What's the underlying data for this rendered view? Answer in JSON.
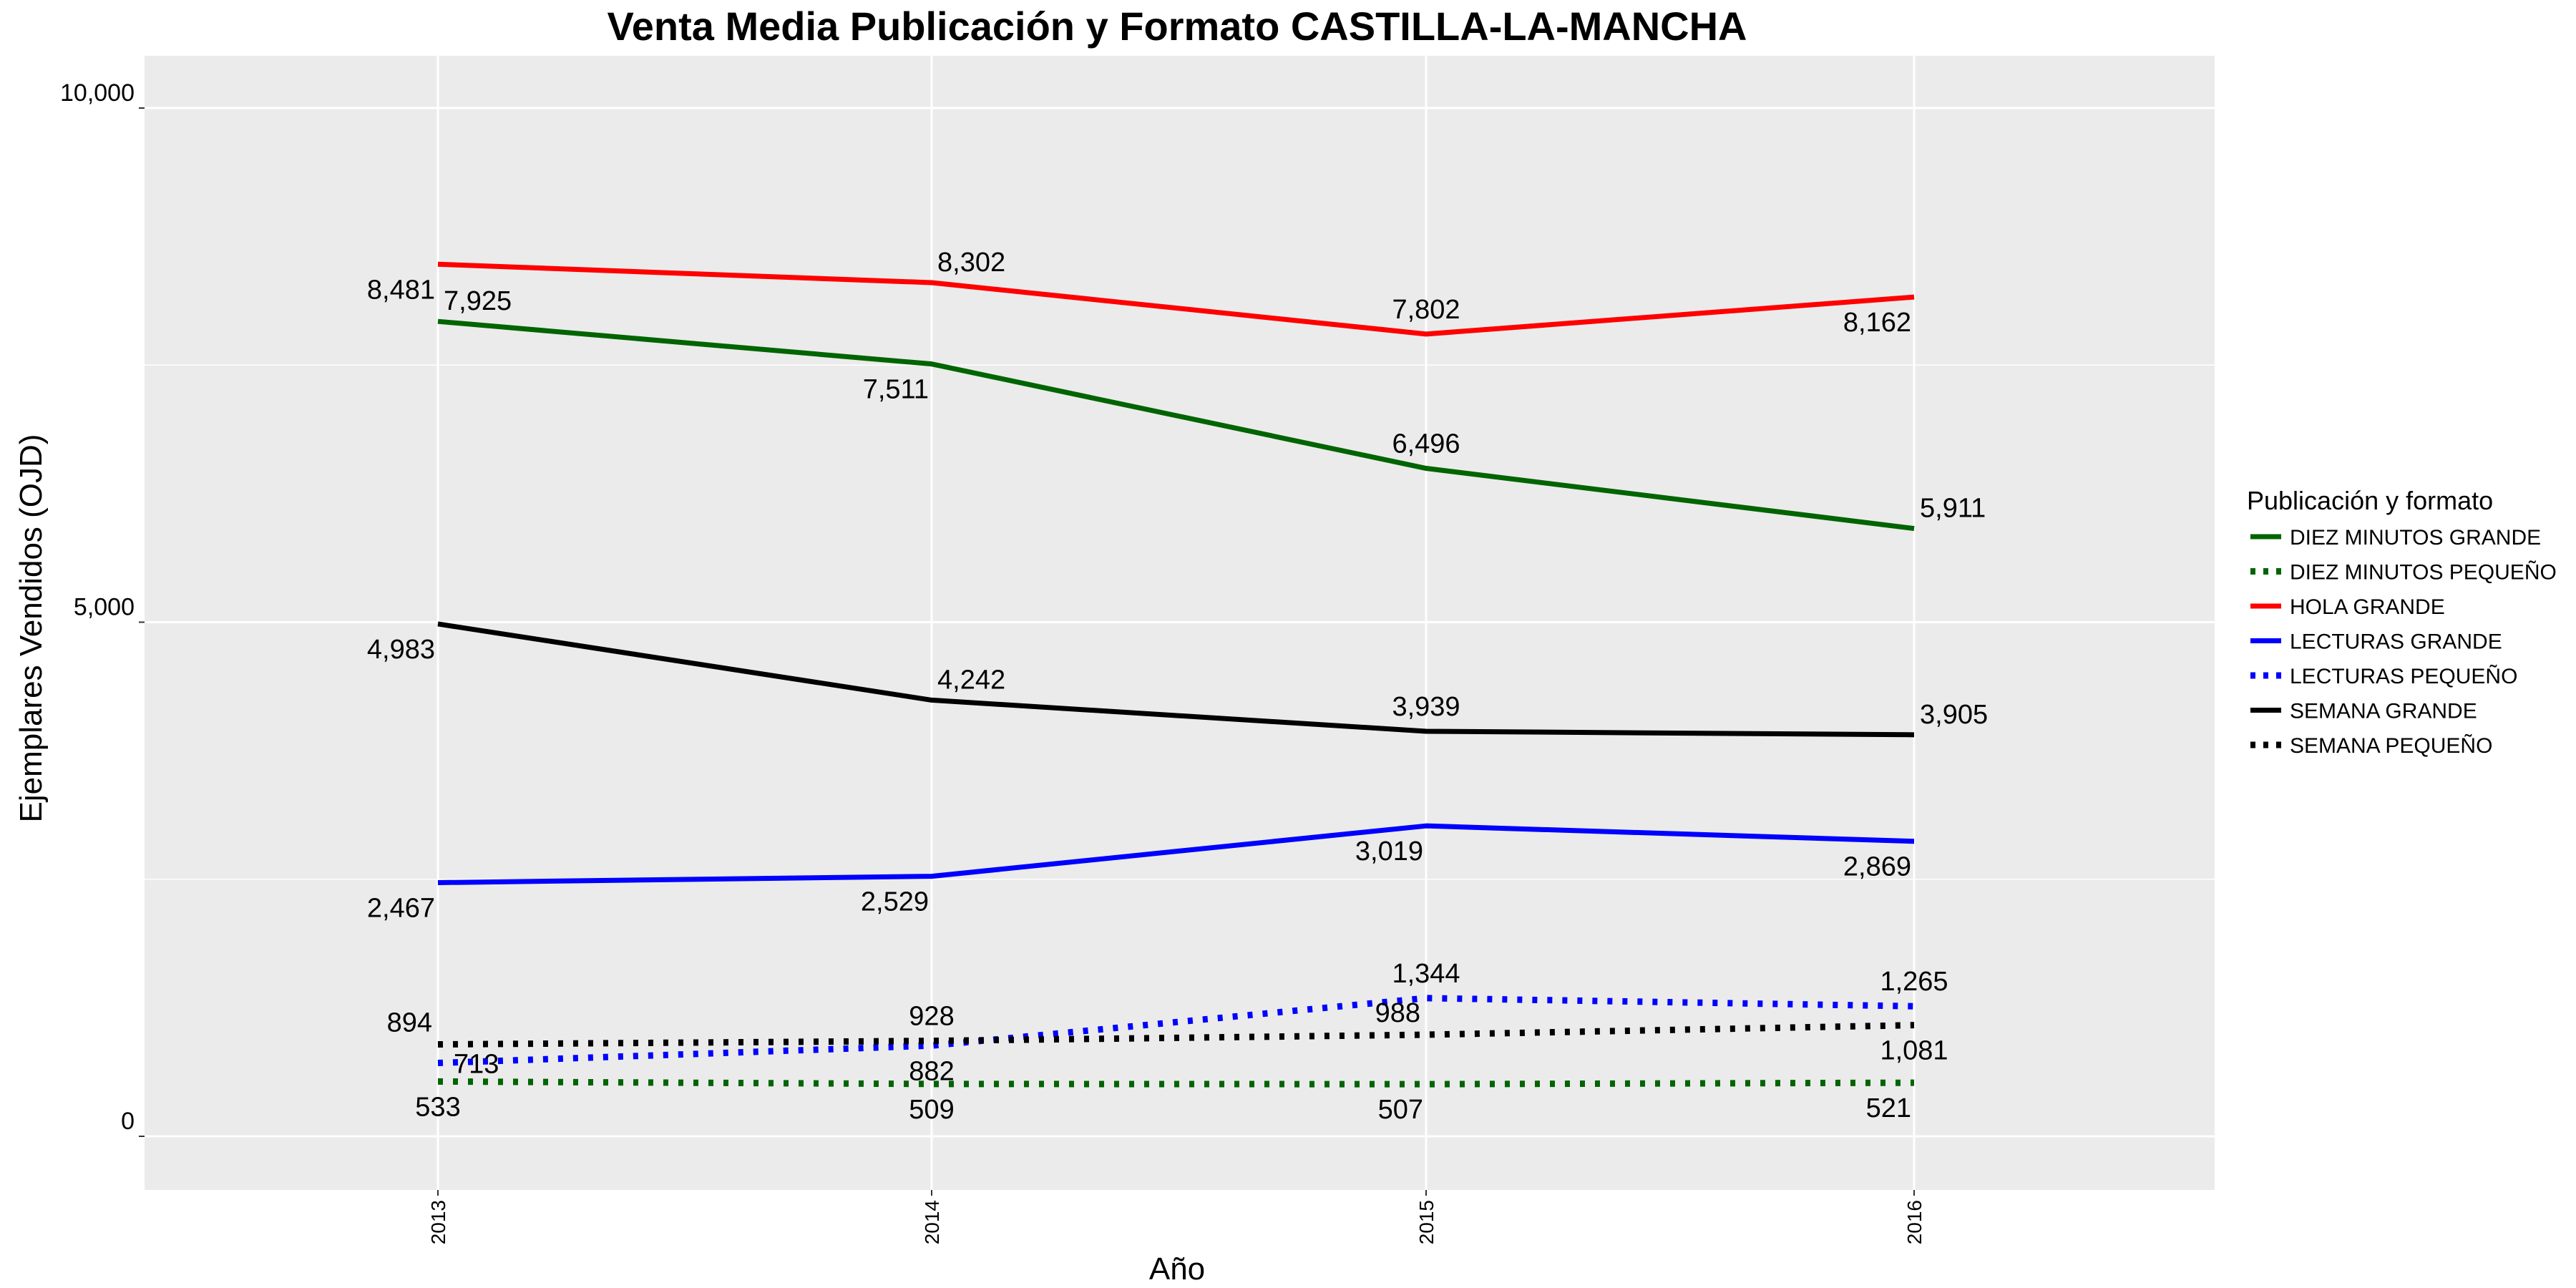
{
  "chart_data": {
    "type": "line",
    "title": "Venta Media Publicación y Formato  CASTILLA-LA-MANCHA",
    "xlabel": "Año",
    "ylabel": "Ejemplares Vendidos (OJD)",
    "x": [
      "2013",
      "2014",
      "2015",
      "2016"
    ],
    "ylim": [
      -500,
      10200
    ],
    "yticks": [
      0,
      5000,
      10000
    ],
    "ytick_labels": [
      "0",
      "5,000",
      "10,000"
    ],
    "grid": true,
    "legend_position": "right",
    "legend_title": "Publicación y formato",
    "series": [
      {
        "name": "DIEZ MINUTOS GRANDE",
        "values": [
          7925,
          7511,
          6496,
          5911
        ],
        "color": "#006400",
        "dashed": false,
        "labels": [
          "7,925",
          "7,511",
          "6,496",
          "5,911"
        ],
        "label_pos": [
          "above-right",
          "below-left",
          "above",
          "above-right"
        ]
      },
      {
        "name": "DIEZ MINUTOS PEQUEÑO",
        "values": [
          533,
          509,
          507,
          521
        ],
        "color": "#006400",
        "dashed": true,
        "labels": [
          "533",
          "509",
          "507",
          "521"
        ],
        "label_pos": [
          "below",
          "below",
          "below-left",
          "below-left"
        ]
      },
      {
        "name": "HOLA GRANDE",
        "values": [
          8481,
          8302,
          7802,
          8162
        ],
        "color": "#ff0000",
        "dashed": false,
        "labels": [
          "8,481",
          "8,302",
          "7,802",
          "8,162"
        ],
        "label_pos": [
          "below-left",
          "above-right",
          "above",
          "below-left"
        ]
      },
      {
        "name": "LECTURAS GRANDE",
        "values": [
          2467,
          2529,
          3019,
          2869
        ],
        "color": "#0000ff",
        "dashed": false,
        "labels": [
          "2,467",
          "2,529",
          "3,019",
          "2,869"
        ],
        "label_pos": [
          "below-left",
          "below-left",
          "below-left",
          "below-left"
        ]
      },
      {
        "name": "LECTURAS PEQUEÑO",
        "values": [
          713,
          882,
          1344,
          1265
        ],
        "color": "#0000ff",
        "dashed": true,
        "labels": [
          "713",
          "882",
          "1,344",
          "1,265"
        ],
        "label_pos": [
          "right",
          "below",
          "above",
          "above"
        ]
      },
      {
        "name": "SEMANA GRANDE",
        "values": [
          4983,
          4242,
          3939,
          3905
        ],
        "color": "#000000",
        "dashed": false,
        "labels": [
          "4,983",
          "4,242",
          "3,939",
          "3,905"
        ],
        "label_pos": [
          "below-left",
          "above-right",
          "above",
          "above-right"
        ]
      },
      {
        "name": "SEMANA PEQUEÑO",
        "values": [
          894,
          928,
          988,
          1081
        ],
        "color": "#000000",
        "dashed": true,
        "labels": [
          "894",
          "928",
          "988",
          "1,081"
        ],
        "label_pos": [
          "above-left",
          "above",
          "above-left",
          "below"
        ]
      }
    ]
  },
  "colors": {
    "panel_background": "#ebebeb",
    "gridline": "#ffffff"
  }
}
